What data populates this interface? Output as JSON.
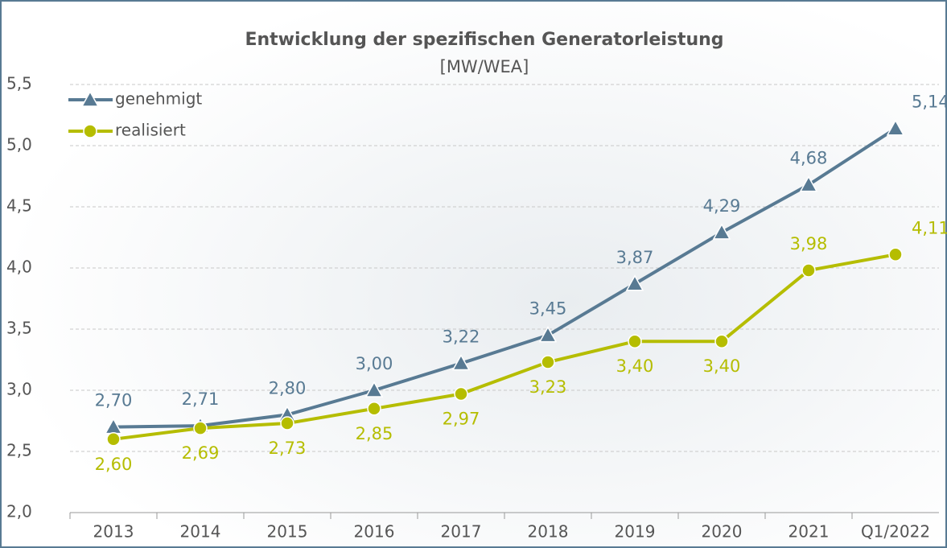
{
  "chart_data": {
    "type": "line",
    "title": "Entwicklung der spezifischen Generatorleistung",
    "subtitle": "[MW/WEA]",
    "categories": [
      "2013",
      "2014",
      "2015",
      "2016",
      "2017",
      "2018",
      "2019",
      "2020",
      "2021",
      "Q1/2022"
    ],
    "series": [
      {
        "name": "genehmigt",
        "color": "#587a93",
        "marker": "triangle",
        "values": [
          2.7,
          2.71,
          2.8,
          3.0,
          3.22,
          3.45,
          3.87,
          4.29,
          4.68,
          5.14
        ],
        "value_labels": [
          "2,70",
          "2,71",
          "2,80",
          "3,00",
          "3,22",
          "3,45",
          "3,87",
          "4,29",
          "4,68",
          "5,14"
        ]
      },
      {
        "name": "realisiert",
        "color": "#b5bd00",
        "marker": "circle",
        "values": [
          2.6,
          2.69,
          2.73,
          2.85,
          2.97,
          3.23,
          3.4,
          3.4,
          3.98,
          4.11
        ],
        "value_labels": [
          "2,60",
          "2,69",
          "2,73",
          "2,85",
          "2,97",
          "3,23",
          "3,40",
          "3,40",
          "3,98",
          "4,11"
        ]
      }
    ],
    "ylim": [
      2.0,
      5.5
    ],
    "yticks": [
      {
        "value": 2.0,
        "label": "2,0"
      },
      {
        "value": 2.5,
        "label": "2,5"
      },
      {
        "value": 3.0,
        "label": "3,0"
      },
      {
        "value": 3.5,
        "label": "3,5"
      },
      {
        "value": 4.0,
        "label": "4,0"
      },
      {
        "value": 4.5,
        "label": "4,5"
      },
      {
        "value": 5.0,
        "label": "5,0"
      },
      {
        "value": 5.5,
        "label": "5,5"
      }
    ],
    "grid": true,
    "legend": "top-left"
  }
}
